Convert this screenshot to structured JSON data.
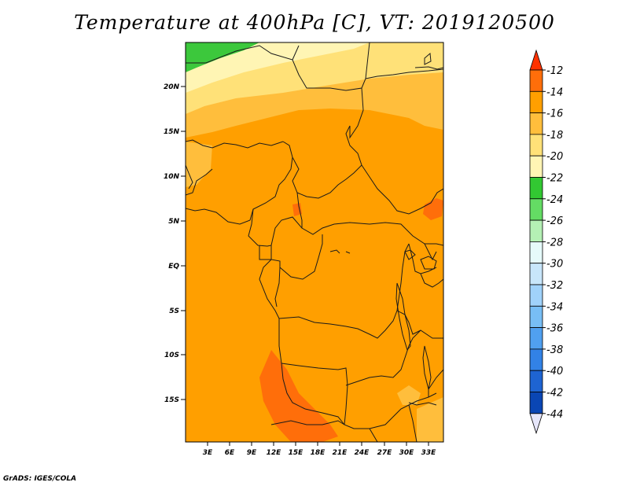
{
  "title": "Temperature at 400hPa [C], VT: 2019120500",
  "footer": "GrADS: IGES/COLA",
  "map": {
    "lat_ticks": [
      "20N",
      "15N",
      "10N",
      "5N",
      "EQ",
      "5S",
      "10S",
      "15S"
    ],
    "lon_ticks": [
      "3E",
      "6E",
      "9E",
      "12E",
      "15E",
      "18E",
      "21E",
      "24E",
      "27E",
      "30E",
      "33E"
    ],
    "field_colors": {
      "lt_-22": "#3cc83c",
      "-22_-20": "#fff5b4",
      "-20_-18": "#ffe178",
      "-18_-16": "#ffbe3c",
      "-16_-14": "#ff9f00",
      "-14_-12": "#ff6e0a"
    }
  },
  "colorbar": {
    "labels": [
      "-12",
      "-14",
      "-16",
      "-18",
      "-20",
      "-22",
      "-24",
      "-26",
      "-28",
      "-30",
      "-32",
      "-34",
      "-36",
      "-38",
      "-40",
      "-42",
      "-44"
    ],
    "colors": [
      "#ff3200",
      "#ff6e0a",
      "#ff9f00",
      "#ffbe3c",
      "#ffe178",
      "#fff5b4",
      "#32c832",
      "#64dc64",
      "#b4f0b4",
      "#e6fafa",
      "#c8e6fa",
      "#a0d2fa",
      "#78bef5",
      "#50a0f0",
      "#3282e6",
      "#1e64d2",
      "#0a46b4",
      "#1e1464",
      "#e6e6fa"
    ]
  }
}
